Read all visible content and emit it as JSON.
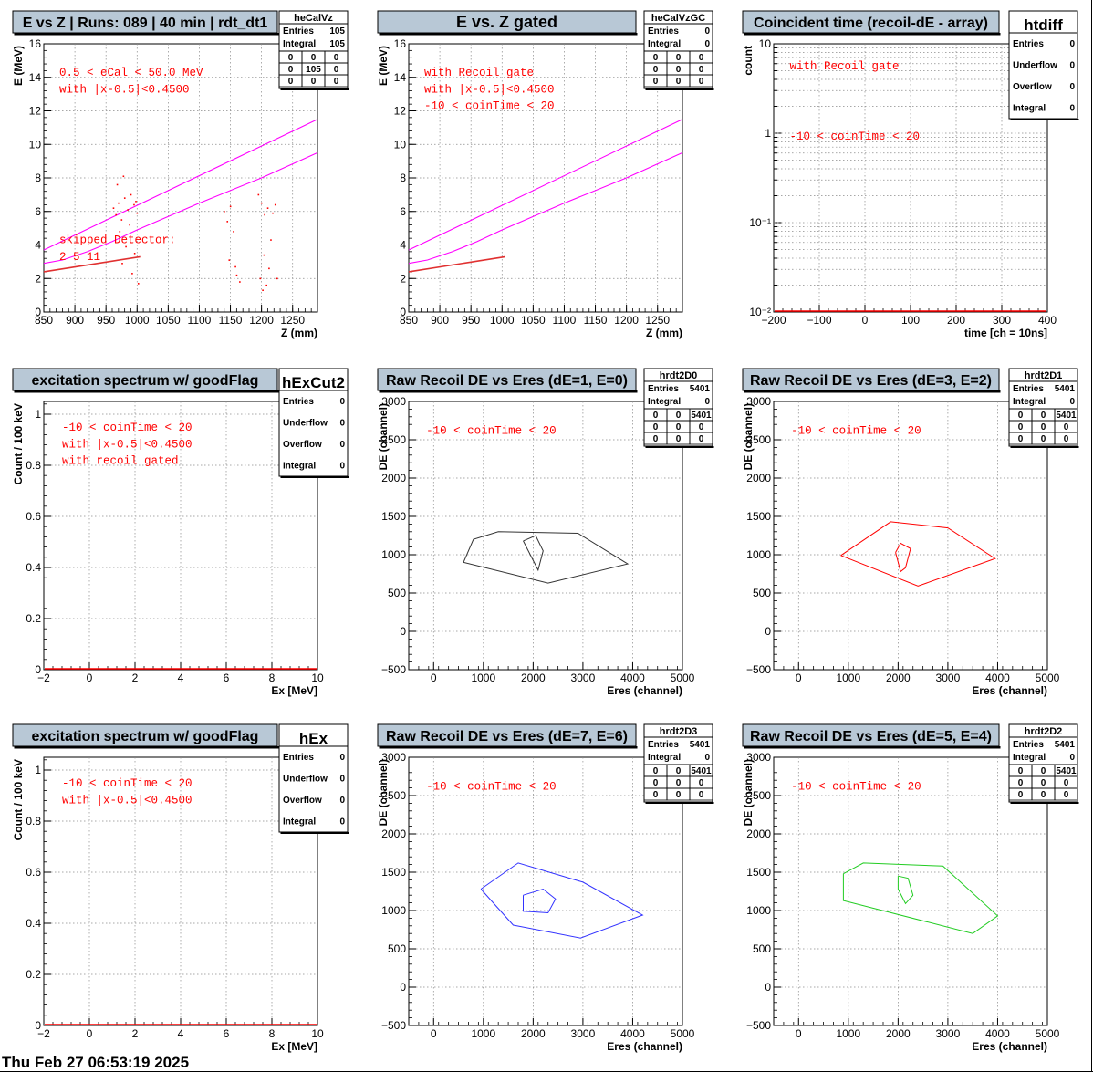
{
  "footer": {
    "timestamp": "Thu Feb 27 06:53:19 2025"
  },
  "colors": {
    "title_bg": "#b8c8d6",
    "black": "#000000",
    "red": "#ff0000",
    "magenta": "#ff00ff",
    "darkred": "#e03030",
    "grid": "#8a8a8a",
    "blue": "#3333ff",
    "green": "#22cc22",
    "gray": "#333333"
  },
  "chart_data": [
    {
      "id": "p1",
      "type": "scatter",
      "title": "E vs Z | Runs: 089 | 40 min | rdt_dt1",
      "xlabel": "Z (mm)",
      "ylabel": "E (MeV)",
      "xlim": [
        850,
        1290
      ],
      "ylim": [
        0,
        16
      ],
      "grid": true,
      "xticks": [
        850,
        900,
        950,
        1000,
        1050,
        1100,
        1150,
        1200,
        1250
      ],
      "yticks": [
        0,
        2,
        4,
        6,
        8,
        10,
        12,
        14,
        16
      ],
      "stats": {
        "name": "heCalVz",
        "rows": [
          [
            "Entries",
            "105"
          ],
          [
            "Integral",
            "105"
          ]
        ],
        "matrix": [
          [
            "0",
            "0",
            "0"
          ],
          [
            "0",
            "105",
            "0"
          ],
          [
            "0",
            "0",
            "0"
          ]
        ]
      },
      "annotations": [
        {
          "text": "0.5 < eCal < 50.0 MeV",
          "x": 875,
          "y": 14.1
        },
        {
          "text": "with |x-0.5|<0.4500",
          "x": 875,
          "y": 13.1
        },
        {
          "text": "skipped Detector:",
          "x": 875,
          "y": 4.1
        },
        {
          "text": "2     5     11",
          "x": 875,
          "y": 3.1
        }
      ],
      "lines": [
        {
          "color": "magenta",
          "points": [
            [
              850,
              3.7
            ],
            [
              1290,
              11.5
            ]
          ]
        },
        {
          "color": "magenta",
          "points": [
            [
              850,
              2.9
            ],
            [
              880,
              3.1
            ],
            [
              920,
              3.6
            ],
            [
              960,
              4.2
            ],
            [
              1000,
              4.9
            ],
            [
              1100,
              6.5
            ],
            [
              1200,
              8.0
            ],
            [
              1290,
              9.5
            ]
          ]
        },
        {
          "color": "darkred",
          "points": [
            [
              850,
              2.4
            ],
            [
              1005,
              3.3
            ]
          ]
        }
      ],
      "points": [
        [
          962,
          6.2
        ],
        [
          966,
          5.8
        ],
        [
          970,
          6.5
        ],
        [
          975,
          5.5
        ],
        [
          980,
          6.8
        ],
        [
          985,
          6.1
        ],
        [
          990,
          7.0
        ],
        [
          995,
          6.4
        ],
        [
          1000,
          5.9
        ],
        [
          968,
          7.6
        ],
        [
          978,
          8.1
        ],
        [
          988,
          5.2
        ],
        [
          998,
          6.6
        ],
        [
          972,
          4.8
        ],
        [
          982,
          3.9
        ],
        [
          992,
          2.3
        ],
        [
          1002,
          1.7
        ],
        [
          976,
          2.9
        ],
        [
          996,
          3.5
        ],
        [
          1140,
          6.0
        ],
        [
          1145,
          5.4
        ],
        [
          1150,
          6.3
        ],
        [
          1155,
          4.8
        ],
        [
          1160,
          2.2
        ],
        [
          1165,
          1.8
        ],
        [
          1148,
          3.1
        ],
        [
          1158,
          2.7
        ],
        [
          1195,
          7.0
        ],
        [
          1200,
          6.5
        ],
        [
          1205,
          5.8
        ],
        [
          1210,
          6.2
        ],
        [
          1215,
          4.3
        ],
        [
          1198,
          2.0
        ],
        [
          1208,
          1.6
        ],
        [
          1212,
          2.6
        ],
        [
          1218,
          5.9
        ],
        [
          1222,
          6.4
        ],
        [
          1202,
          1.3
        ],
        [
          1225,
          2.0
        ],
        [
          1204,
          3.4
        ]
      ]
    },
    {
      "id": "p2",
      "type": "scatter",
      "title": "E vs. Z gated",
      "xlabel": "Z (mm)",
      "ylabel": "E (MeV)",
      "xlim": [
        850,
        1290
      ],
      "ylim": [
        0,
        16
      ],
      "grid": true,
      "xticks": [
        850,
        900,
        950,
        1000,
        1050,
        1100,
        1150,
        1200,
        1250
      ],
      "yticks": [
        0,
        2,
        4,
        6,
        8,
        10,
        12,
        14,
        16
      ],
      "stats": {
        "name": "heCalVzGC",
        "rows": [
          [
            "Entries",
            "0"
          ],
          [
            "Integral",
            "0"
          ]
        ],
        "matrix": [
          [
            "0",
            "0",
            "0"
          ],
          [
            "0",
            "0",
            "0"
          ],
          [
            "0",
            "0",
            "0"
          ]
        ]
      },
      "annotations": [
        {
          "text": "with Recoil gate",
          "x": 875,
          "y": 14.1
        },
        {
          "text": "with |x-0.5|<0.4500",
          "x": 875,
          "y": 13.1
        },
        {
          "text": "-10 < coinTime < 20",
          "x": 875,
          "y": 12.1
        }
      ],
      "lines": [
        {
          "color": "magenta",
          "points": [
            [
              850,
              3.7
            ],
            [
              1290,
              11.5
            ]
          ]
        },
        {
          "color": "magenta",
          "points": [
            [
              850,
              2.9
            ],
            [
              880,
              3.1
            ],
            [
              920,
              3.6
            ],
            [
              960,
              4.2
            ],
            [
              1000,
              4.9
            ],
            [
              1100,
              6.5
            ],
            [
              1200,
              8.0
            ],
            [
              1290,
              9.5
            ]
          ]
        },
        {
          "color": "darkred",
          "points": [
            [
              850,
              2.4
            ],
            [
              1005,
              3.3
            ]
          ]
        }
      ],
      "points": []
    },
    {
      "id": "p3",
      "type": "line",
      "ylog": true,
      "title": "Coincident time (recoil-dE - array)",
      "xlabel": "time [ch = 10ns]",
      "ylabel": "count",
      "xlim": [
        -200,
        400
      ],
      "ylim": [
        0.01,
        10
      ],
      "grid": true,
      "xticks": [
        -200,
        -100,
        0,
        100,
        200,
        300,
        400
      ],
      "ylog_labels": [
        [
          "10⁻²",
          0.01
        ],
        [
          "10⁻¹",
          0.1
        ],
        [
          "1",
          1
        ],
        [
          "10",
          10
        ]
      ],
      "stats": {
        "name": "htdiff",
        "rows": [
          [
            "Entries",
            "0"
          ],
          [
            "Underflow",
            "0"
          ],
          [
            "Overflow",
            "0"
          ],
          [
            "Integral",
            "0"
          ]
        ]
      },
      "annotations": [
        {
          "text": "with Recoil gate",
          "x": -165,
          "y": 5.2
        },
        {
          "text": "-10 < coinTime < 20",
          "x": -165,
          "y": 0.85
        }
      ],
      "values": []
    },
    {
      "id": "p4",
      "type": "line",
      "title": "excitation spectrum w/ goodFlag",
      "xlabel": "Ex [MeV]",
      "ylabel": "Count / 100 keV",
      "xlim": [
        -2,
        10
      ],
      "ylim": [
        0,
        1.05
      ],
      "grid": true,
      "xticks": [
        -2,
        0,
        2,
        4,
        6,
        8,
        10
      ],
      "yticks": [
        0,
        0.2,
        0.4,
        0.6,
        0.8,
        1
      ],
      "stats": {
        "name": "hExCut2",
        "rows": [
          [
            "Entries",
            "0"
          ],
          [
            "Underflow",
            "0"
          ],
          [
            "Overflow",
            "0"
          ],
          [
            "Integral",
            "0"
          ]
        ]
      },
      "annotations": [
        {
          "text": "-10 < coinTime < 20",
          "x": -1.2,
          "y": 0.935
        },
        {
          "text": "with |x-0.5|<0.4500",
          "x": -1.2,
          "y": 0.87
        },
        {
          "text": "with recoil gated",
          "x": -1.2,
          "y": 0.805
        }
      ],
      "values": []
    },
    {
      "id": "p5",
      "type": "heatmap",
      "title": "Raw Recoil DE vs Eres (dE=1, E=0)",
      "xlabel": "Eres (channel)",
      "ylabel": "DE (channel)",
      "xlim": [
        -500,
        5000
      ],
      "ylim": [
        -500,
        3000
      ],
      "grid": true,
      "xticks": [
        0,
        1000,
        2000,
        3000,
        4000,
        5000
      ],
      "yticks": [
        -500,
        0,
        500,
        1000,
        1500,
        2000,
        2500,
        3000
      ],
      "stats": {
        "name": "hrdt2D0",
        "rows": [
          [
            "Entries",
            "5401"
          ],
          [
            "Integral",
            "0"
          ]
        ],
        "matrix": [
          [
            "0",
            "0",
            "5401"
          ],
          [
            "0",
            "0",
            "0"
          ],
          [
            "0",
            "0",
            "0"
          ]
        ]
      },
      "annotations": [
        {
          "text": "-10 < coinTime < 20",
          "x": -150,
          "y": 2580
        }
      ],
      "polygons": [
        {
          "color": "gray",
          "points": [
            [
              600,
              900
            ],
            [
              800,
              1200
            ],
            [
              1300,
              1300
            ],
            [
              2900,
              1280
            ],
            [
              3900,
              880
            ],
            [
              2300,
              630
            ],
            [
              600,
              900
            ]
          ]
        },
        {
          "color": "gray",
          "points": [
            [
              1800,
              1180
            ],
            [
              2050,
              1250
            ],
            [
              2200,
              1050
            ],
            [
              2100,
              800
            ],
            [
              1800,
              1180
            ]
          ]
        }
      ]
    },
    {
      "id": "p6",
      "type": "heatmap",
      "title": "Raw Recoil DE vs Eres (dE=3, E=2)",
      "xlabel": "Eres (channel)",
      "ylabel": "DE (channel)",
      "xlim": [
        -500,
        5000
      ],
      "ylim": [
        -500,
        3000
      ],
      "grid": true,
      "xticks": [
        0,
        1000,
        2000,
        3000,
        4000,
        5000
      ],
      "yticks": [
        -500,
        0,
        500,
        1000,
        1500,
        2000,
        2500,
        3000
      ],
      "stats": {
        "name": "hrdt2D1",
        "rows": [
          [
            "Entries",
            "5401"
          ],
          [
            "Integral",
            "0"
          ]
        ],
        "matrix": [
          [
            "0",
            "0",
            "5401"
          ],
          [
            "0",
            "0",
            "0"
          ],
          [
            "0",
            "0",
            "0"
          ]
        ]
      },
      "annotations": [
        {
          "text": "-10 < coinTime < 20",
          "x": -150,
          "y": 2580
        }
      ],
      "polygons": [
        {
          "color": "red",
          "points": [
            [
              850,
              990
            ],
            [
              1850,
              1430
            ],
            [
              3000,
              1350
            ],
            [
              3950,
              950
            ],
            [
              2400,
              590
            ],
            [
              850,
              990
            ]
          ]
        },
        {
          "color": "red",
          "points": [
            [
              1950,
              1030
            ],
            [
              2050,
              1150
            ],
            [
              2250,
              1080
            ],
            [
              2150,
              830
            ],
            [
              2050,
              780
            ],
            [
              1950,
              1030
            ]
          ]
        }
      ]
    },
    {
      "id": "p7",
      "type": "line",
      "title": "excitation spectrum w/ goodFlag",
      "xlabel": "Ex [MeV]",
      "ylabel": "Count / 100 keV",
      "xlim": [
        -2,
        10
      ],
      "ylim": [
        0,
        1.05
      ],
      "grid": true,
      "xticks": [
        -2,
        0,
        2,
        4,
        6,
        8,
        10
      ],
      "yticks": [
        0,
        0.2,
        0.4,
        0.6,
        0.8,
        1
      ],
      "stats": {
        "name": "hEx",
        "rows": [
          [
            "Entries",
            "0"
          ],
          [
            "Underflow",
            "0"
          ],
          [
            "Overflow",
            "0"
          ],
          [
            "Integral",
            "0"
          ]
        ]
      },
      "annotations": [
        {
          "text": "-10 < coinTime < 20",
          "x": -1.2,
          "y": 0.935
        },
        {
          "text": "with |x-0.5|<0.4500",
          "x": -1.2,
          "y": 0.87
        }
      ],
      "values": []
    },
    {
      "id": "p8",
      "type": "heatmap",
      "title": "Raw Recoil DE vs Eres (dE=7, E=6)",
      "xlabel": "Eres (channel)",
      "ylabel": "DE (channel)",
      "xlim": [
        -500,
        5000
      ],
      "ylim": [
        -500,
        3000
      ],
      "grid": true,
      "xticks": [
        0,
        1000,
        2000,
        3000,
        4000,
        5000
      ],
      "yticks": [
        -500,
        0,
        500,
        1000,
        1500,
        2000,
        2500,
        3000
      ],
      "stats": {
        "name": "hrdt2D3",
        "rows": [
          [
            "Entries",
            "5401"
          ],
          [
            "Integral",
            "0"
          ]
        ],
        "matrix": [
          [
            "0",
            "0",
            "5401"
          ],
          [
            "0",
            "0",
            "0"
          ],
          [
            "0",
            "0",
            "0"
          ]
        ]
      },
      "annotations": [
        {
          "text": "-10 < coinTime < 20",
          "x": -150,
          "y": 2580
        }
      ],
      "polygons": [
        {
          "color": "blue",
          "points": [
            [
              950,
              1280
            ],
            [
              1700,
              1620
            ],
            [
              3000,
              1370
            ],
            [
              4200,
              940
            ],
            [
              2950,
              640
            ],
            [
              1600,
              810
            ],
            [
              950,
              1280
            ]
          ]
        },
        {
          "color": "blue",
          "points": [
            [
              1800,
              1200
            ],
            [
              2200,
              1280
            ],
            [
              2450,
              1150
            ],
            [
              2300,
              970
            ],
            [
              1800,
              990
            ],
            [
              1800,
              1200
            ]
          ]
        }
      ]
    },
    {
      "id": "p9",
      "type": "heatmap",
      "title": "Raw Recoil DE vs Eres (dE=5, E=4)",
      "xlabel": "Eres (channel)",
      "ylabel": "DE (channel)",
      "xlim": [
        -500,
        5000
      ],
      "ylim": [
        -500,
        3000
      ],
      "grid": true,
      "xticks": [
        0,
        1000,
        2000,
        3000,
        4000,
        5000
      ],
      "yticks": [
        -500,
        0,
        500,
        1000,
        1500,
        2000,
        2500,
        3000
      ],
      "stats": {
        "name": "hrdt2D2",
        "rows": [
          [
            "Entries",
            "5401"
          ],
          [
            "Integral",
            "0"
          ]
        ],
        "matrix": [
          [
            "0",
            "0",
            "5401"
          ],
          [
            "0",
            "0",
            "0"
          ],
          [
            "0",
            "0",
            "0"
          ]
        ]
      },
      "annotations": [
        {
          "text": "-10 < coinTime < 20",
          "x": -150,
          "y": 2580
        }
      ],
      "polygons": [
        {
          "color": "green",
          "points": [
            [
              900,
              1480
            ],
            [
              1300,
              1620
            ],
            [
              2900,
              1580
            ],
            [
              4000,
              930
            ],
            [
              3500,
              700
            ],
            [
              900,
              1130
            ],
            [
              900,
              1480
            ]
          ]
        },
        {
          "color": "green",
          "points": [
            [
              2000,
              1450
            ],
            [
              2200,
              1420
            ],
            [
              2300,
              1200
            ],
            [
              2150,
              1090
            ],
            [
              2000,
              1280
            ],
            [
              2000,
              1450
            ]
          ]
        }
      ]
    }
  ]
}
